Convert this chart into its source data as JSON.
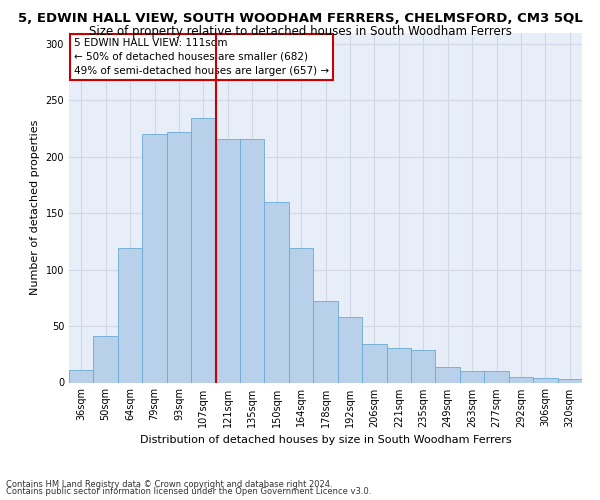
{
  "title": "5, EDWIN HALL VIEW, SOUTH WOODHAM FERRERS, CHELMSFORD, CM3 5QL",
  "subtitle": "Size of property relative to detached houses in South Woodham Ferrers",
  "xlabel": "Distribution of detached houses by size in South Woodham Ferrers",
  "ylabel": "Number of detached properties",
  "categories": [
    "36sqm",
    "50sqm",
    "64sqm",
    "79sqm",
    "93sqm",
    "107sqm",
    "121sqm",
    "135sqm",
    "150sqm",
    "164sqm",
    "178sqm",
    "192sqm",
    "206sqm",
    "221sqm",
    "235sqm",
    "249sqm",
    "263sqm",
    "277sqm",
    "292sqm",
    "306sqm",
    "320sqm"
  ],
  "values": [
    11,
    41,
    119,
    220,
    222,
    234,
    216,
    216,
    160,
    119,
    72,
    58,
    34,
    31,
    29,
    14,
    10,
    10,
    5,
    4,
    3
  ],
  "bar_color": "#b8d0ea",
  "bar_edge_color": "#6aaad4",
  "grid_color": "#d0d8e8",
  "bg_color": "#e8eef8",
  "vline_x": 5.5,
  "vline_color": "#cc0000",
  "annotation_text": "5 EDWIN HALL VIEW: 111sqm\n← 50% of detached houses are smaller (682)\n49% of semi-detached houses are larger (657) →",
  "annotation_box_color": "white",
  "annotation_box_edge": "#cc0000",
  "footnote1": "Contains HM Land Registry data © Crown copyright and database right 2024.",
  "footnote2": "Contains public sector information licensed under the Open Government Licence v3.0.",
  "ylim": [
    0,
    310
  ],
  "yticks": [
    0,
    50,
    100,
    150,
    200,
    250,
    300
  ],
  "title_fontsize": 9.5,
  "subtitle_fontsize": 8.5,
  "tick_fontsize": 7,
  "ylabel_fontsize": 8,
  "xlabel_fontsize": 8
}
